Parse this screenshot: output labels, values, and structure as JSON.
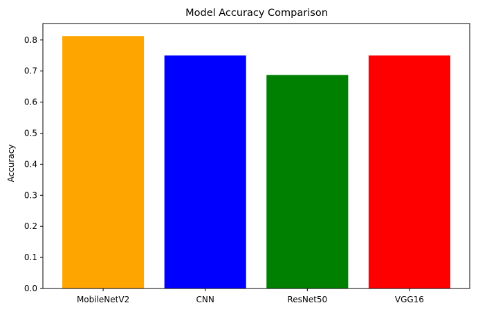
{
  "chart_data": {
    "type": "bar",
    "title": "Model Accuracy Comparison",
    "xlabel": "",
    "ylabel": "Accuracy",
    "categories": [
      "MobileNetV2",
      "CNN",
      "ResNet50",
      "VGG16"
    ],
    "values": [
      0.8125,
      0.75,
      0.6875,
      0.75
    ],
    "colors": [
      "#ffa500",
      "#0000ff",
      "#008000",
      "#ff0000"
    ],
    "ylim": [
      0,
      0.853
    ],
    "yticks": [
      "0.0",
      "0.1",
      "0.2",
      "0.3",
      "0.4",
      "0.5",
      "0.6",
      "0.7",
      "0.8"
    ],
    "grid": false,
    "legend": "none"
  }
}
